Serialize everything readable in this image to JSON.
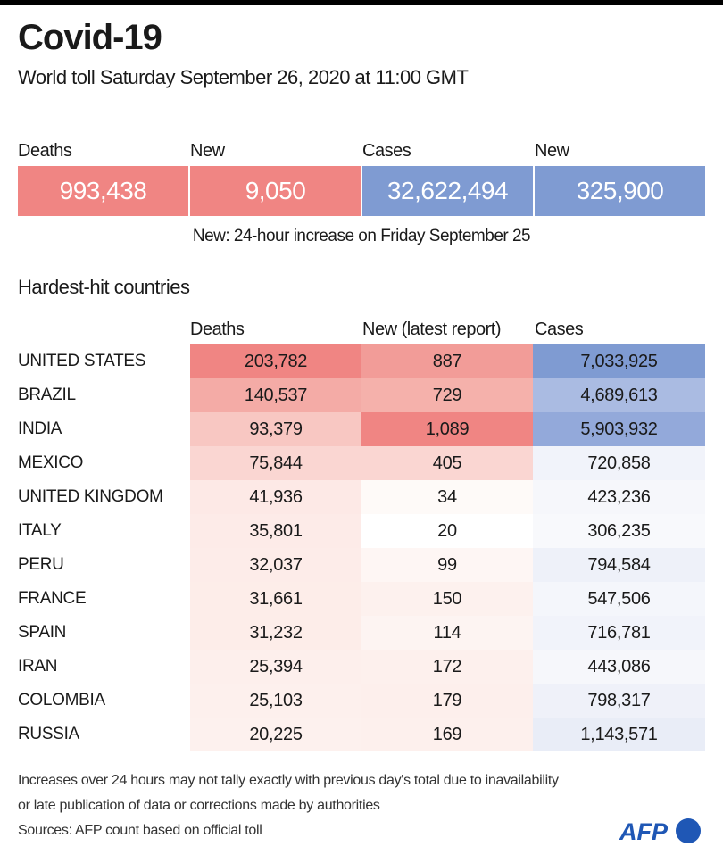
{
  "title": "Covid-19",
  "subtitle": "World toll Saturday September 26, 2020 at 11:00 GMT",
  "summary": {
    "items": [
      {
        "label": "Deaths",
        "value": "993,438",
        "color": "#f08583"
      },
      {
        "label": "New",
        "value": "9,050",
        "color": "#f08583"
      },
      {
        "label": "Cases",
        "value": "32,622,494",
        "color": "#7f9bd2"
      },
      {
        "label": "New",
        "value": "325,900",
        "color": "#7f9bd2"
      }
    ],
    "note": "New: 24-hour increase on Friday September 25"
  },
  "table": {
    "title": "Hardest-hit countries",
    "headers": [
      "Deaths",
      "New (latest report)",
      "Cases"
    ],
    "rows": [
      {
        "country": "UNITED STATES",
        "deaths": "203,782",
        "new": "887",
        "cases": "7,033,925",
        "c": [
          "#f08583",
          "#f29c98",
          "#7f9bd2"
        ]
      },
      {
        "country": "BRAZIL",
        "deaths": "140,537",
        "new": "729",
        "cases": "4,689,613",
        "c": [
          "#f4aba6",
          "#f5b1ab",
          "#aabbe2"
        ]
      },
      {
        "country": "INDIA",
        "deaths": "93,379",
        "new": "1,089",
        "cases": "5,903,932",
        "c": [
          "#f8c7c2",
          "#f08583",
          "#93a9da"
        ]
      },
      {
        "country": "MEXICO",
        "deaths": "75,844",
        "new": "405",
        "cases": "720,858",
        "c": [
          "#fad6d2",
          "#fad6d2",
          "#f1f3fa"
        ]
      },
      {
        "country": "UNITED KINGDOM",
        "deaths": "41,936",
        "new": "34",
        "cases": "423,236",
        "c": [
          "#fde9e6",
          "#fefaf8",
          "#f6f7fb"
        ]
      },
      {
        "country": "ITALY",
        "deaths": "35,801",
        "new": "20",
        "cases": "306,235",
        "c": [
          "#fdebe8",
          "#ffffff",
          "#f8f9fc"
        ]
      },
      {
        "country": "PERU",
        "deaths": "32,037",
        "new": "99",
        "cases": "794,584",
        "c": [
          "#fdece9",
          "#fef6f4",
          "#eef1f9"
        ]
      },
      {
        "country": "FRANCE",
        "deaths": "31,661",
        "new": "150",
        "cases": "547,506",
        "c": [
          "#fdede9",
          "#fdf1ee",
          "#f4f6fb"
        ]
      },
      {
        "country": "SPAIN",
        "deaths": "31,232",
        "new": "114",
        "cases": "716,781",
        "c": [
          "#fdede9",
          "#fdf4f2",
          "#f1f3fa"
        ]
      },
      {
        "country": "IRAN",
        "deaths": "25,394",
        "new": "172",
        "cases": "443,086",
        "c": [
          "#fdefec",
          "#fdf0ed",
          "#f6f7fb"
        ]
      },
      {
        "country": "COLOMBIA",
        "deaths": "25,103",
        "new": "179",
        "cases": "798,317",
        "c": [
          "#fdf0ed",
          "#fdefec",
          "#eff1f9"
        ]
      },
      {
        "country": "RUSSIA",
        "deaths": "20,225",
        "new": "169",
        "cases": "1,143,571",
        "c": [
          "#fdf1ee",
          "#fdf0ed",
          "#e9edf7"
        ]
      }
    ]
  },
  "footer": {
    "line1": "Increases over 24 hours may not tally exactly with previous day's total due to inavailability",
    "line2": "or late publication of data or corrections made by authorities",
    "sources": "Sources: AFP count based on official toll"
  },
  "logo": {
    "text": "AFP",
    "color": "#1f57b5"
  }
}
